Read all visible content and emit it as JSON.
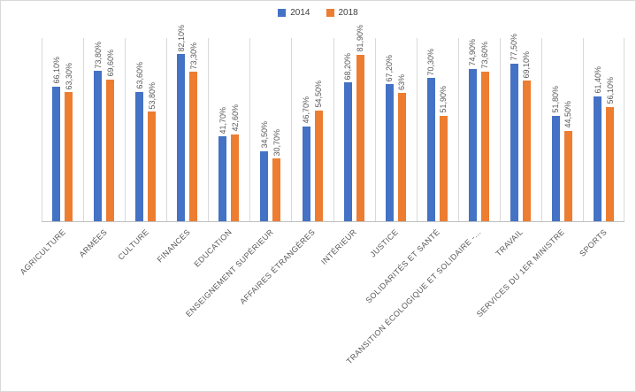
{
  "legend": {
    "items": [
      {
        "label": "2014",
        "color": "#4472C4"
      },
      {
        "label": "2018",
        "color": "#ED7D31"
      }
    ]
  },
  "chart_data": {
    "type": "bar",
    "title": "",
    "xlabel": "",
    "ylabel": "",
    "ylim": [
      0,
      90
    ],
    "grid": "vertical category separators only",
    "legend_position": "top-center",
    "value_format": "percent, French decimal comma",
    "colors": {
      "series_2014": "#4472C4",
      "series_2018": "#ED7D31",
      "data_label": "#595959",
      "category_label": "#595959",
      "gridline": "#D9D9D9",
      "axis_line": "#BFBFBF",
      "border": "#D9D9D9"
    },
    "categories": [
      "AGRICULTURE",
      "ARMÉES",
      "CULTURE",
      "FINANCES",
      "EDUCATION",
      "ENSEIGNEMENT SUPÉRIEUR",
      "AFFAIRES ÉTRANGÈRES",
      "INTÉRIEUR",
      "JUSTICE",
      "SOLIDARITÉS ET SANTÉ",
      "TRANSITION ÉCOLOGIQUE ET SOLIDAIRE -…",
      "TRAVAIL",
      "SERVICES DU 1ER MINISTRE",
      "SPORTS"
    ],
    "series": [
      {
        "name": "2014",
        "color": "#4472C4",
        "values": [
          66.1,
          73.8,
          63.6,
          82.1,
          41.7,
          34.5,
          46.7,
          68.2,
          67.2,
          70.3,
          74.9,
          77.5,
          51.8,
          61.4
        ],
        "data_labels": [
          "66,10%",
          "73,80%",
          "63,60%",
          "82,10%",
          "41,70%",
          "34,50%",
          "46,70%",
          "68,20%",
          "67,20%",
          "70,30%",
          "74,90%",
          "77,50%",
          "51,80%",
          "61,40%"
        ]
      },
      {
        "name": "2018",
        "color": "#ED7D31",
        "values": [
          63.3,
          69.6,
          53.8,
          73.3,
          42.6,
          30.7,
          54.5,
          81.9,
          63.0,
          51.9,
          73.6,
          69.1,
          44.5,
          56.1
        ],
        "data_labels": [
          "63,30%",
          "69,60%",
          "53,80%",
          "73,30%",
          "42,60%",
          "30,70%",
          "54,50%",
          "81,90%",
          "63%",
          "51,90%",
          "73,60%",
          "69,10%",
          "44,50%",
          "56,10%"
        ]
      }
    ]
  }
}
